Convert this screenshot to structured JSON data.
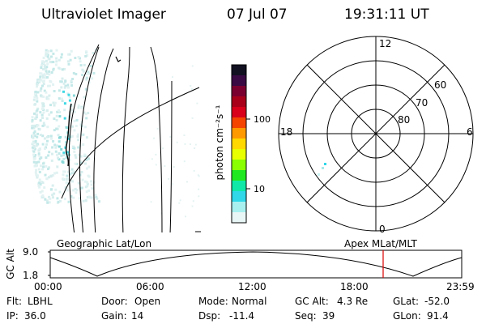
{
  "header": {
    "title": "Ultraviolet Imager",
    "date": "07 Jul 07",
    "time": "19:31:11 UT"
  },
  "colorbar": {
    "unit_label": "photon cm⁻²s⁻¹",
    "ticks": [
      "100",
      "10"
    ],
    "colors": [
      "#111122",
      "#3a0a44",
      "#7a0030",
      "#a8001a",
      "#d8001a",
      "#f44400",
      "#ff9900",
      "#ffd800",
      "#e8ff00",
      "#8aff00",
      "#20e820",
      "#10e8a8",
      "#30d8e8",
      "#a8f0f0",
      "#e8f6f6"
    ]
  },
  "left_panel": {
    "label": "Geographic Lat/Lon"
  },
  "right_panel": {
    "label": "Apex MLat/MLT",
    "mlt_labels": {
      "top": "12",
      "bottom": "0",
      "left": "18",
      "right": "6"
    },
    "lat_labels": [
      "60",
      "70",
      "80"
    ]
  },
  "altitude_plot": {
    "ylabel": "GC Alt",
    "ymax": "9.0",
    "ymin": "1.8",
    "xticks": [
      "00:00",
      "06:00",
      "12:00",
      "18:00",
      "23:59"
    ],
    "marker_color": "#dd0000"
  },
  "footer": {
    "row1": [
      {
        "label": "Flt:",
        "value": "LBHL"
      },
      {
        "label": "Door:",
        "value": "Open"
      },
      {
        "label": "Mode:",
        "value": "Normal"
      },
      {
        "label": "GC Alt:",
        "value": "4.3 Re"
      },
      {
        "label": "GLat:",
        "value": "-52.0"
      }
    ],
    "row2": [
      {
        "label": "IP:",
        "value": "36.0"
      },
      {
        "label": "Gain:",
        "value": "14"
      },
      {
        "label": "Dsp:",
        "value": "-11.4"
      },
      {
        "label": "Seq:",
        "value": "39"
      },
      {
        "label": "GLon:",
        "value": "91.4"
      }
    ]
  }
}
